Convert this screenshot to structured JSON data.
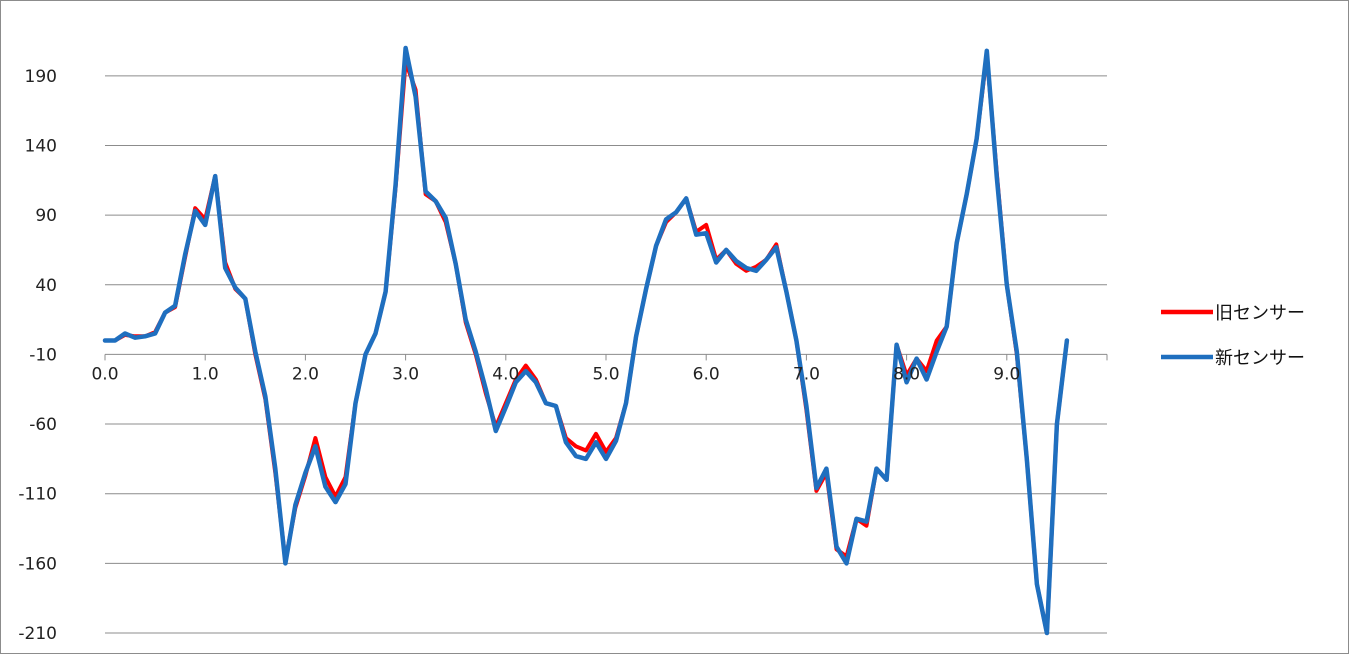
{
  "chart_data": {
    "type": "line",
    "title": "",
    "xlabel": "",
    "ylabel": "",
    "x_start": 0.0,
    "x_step": 0.1,
    "xlim": [
      0.0,
      10.0
    ],
    "ylim": [
      -210,
      215
    ],
    "yticks": [
      190,
      140,
      90,
      40,
      -10,
      -60,
      -110,
      -160,
      -210
    ],
    "xticks": [
      0.0,
      1.0,
      2.0,
      3.0,
      4.0,
      5.0,
      6.0,
      7.0,
      8.0,
      9.0
    ],
    "ytick_labels": [
      "190",
      "140",
      "90",
      "40",
      "-10",
      "-60",
      "-110",
      "-160",
      "-210"
    ],
    "xtick_labels": [
      "0.0",
      "1.0",
      "2.0",
      "3.0",
      "4.0",
      "5.0",
      "6.0",
      "7.0",
      "8.0",
      "9.0"
    ],
    "grid": "horizontal",
    "legend_position": "right",
    "series": [
      {
        "name": "旧センサー",
        "color": "#ff0000",
        "values": [
          0,
          0,
          4,
          3,
          3,
          6,
          20,
          24,
          60,
          95,
          87,
          118,
          56,
          37,
          30,
          -10,
          -42,
          -95,
          -158,
          -120,
          -97,
          -70,
          -98,
          -112,
          -98,
          -45,
          -10,
          5,
          35,
          110,
          200,
          180,
          105,
          100,
          85,
          55,
          13,
          -10,
          -38,
          -62,
          -45,
          -28,
          -18,
          -28,
          -45,
          -47,
          -70,
          -76,
          -79,
          -67,
          -80,
          -70,
          -45,
          3,
          37,
          68,
          85,
          92,
          102,
          78,
          83,
          58,
          65,
          55,
          50,
          53,
          58,
          69,
          35,
          0,
          -50,
          -108,
          -95,
          -150,
          -155,
          -128,
          -133,
          -92,
          -100,
          -3,
          -25,
          -13,
          -22,
          0,
          10,
          70,
          105,
          145,
          205,
          120,
          40,
          -10,
          -85,
          -175,
          -210,
          -60,
          0
        ],
        "color_role": "red"
      },
      {
        "name": "新センサー",
        "color": "#1f6fbf",
        "values": [
          0,
          0,
          5,
          2,
          3,
          5,
          20,
          25,
          62,
          93,
          83,
          118,
          52,
          38,
          30,
          -8,
          -40,
          -92,
          -160,
          -118,
          -95,
          -76,
          -105,
          -116,
          -103,
          -45,
          -10,
          5,
          35,
          112,
          210,
          175,
          107,
          100,
          88,
          55,
          15,
          -8,
          -35,
          -65,
          -48,
          -30,
          -22,
          -30,
          -45,
          -47,
          -73,
          -83,
          -85,
          -73,
          -85,
          -72,
          -45,
          3,
          37,
          68,
          87,
          92,
          102,
          76,
          77,
          56,
          65,
          57,
          52,
          50,
          58,
          67,
          35,
          0,
          -47,
          -106,
          -92,
          -148,
          -160,
          -128,
          -130,
          -92,
          -100,
          -3,
          -30,
          -13,
          -28,
          -8,
          10,
          70,
          105,
          145,
          208,
          117,
          40,
          -8,
          -85,
          -175,
          -210,
          -60,
          0
        ],
        "color_role": "blue"
      }
    ]
  }
}
